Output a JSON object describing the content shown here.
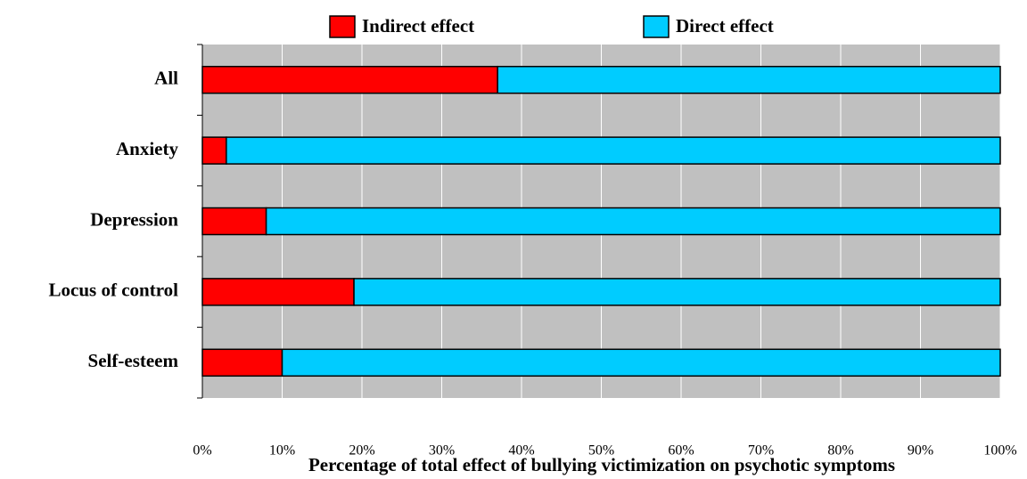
{
  "chart_data": {
    "type": "stacked_barh",
    "xlabel": "Percentage of total effect of bullying victimization on psychotic symptoms",
    "categories": [
      "All",
      "Anxiety",
      "Depression",
      "Locus of control",
      "Self-esteem"
    ],
    "series": [
      {
        "name": "Indirect effect",
        "color": "#ff0000",
        "values": [
          37,
          3,
          8,
          19,
          10
        ]
      },
      {
        "name": "Direct effect",
        "color": "#00ccff",
        "values": [
          63,
          97,
          92,
          81,
          90
        ]
      }
    ],
    "xlim": [
      0,
      100
    ],
    "xticks": [
      {
        "value": 0,
        "label": "0%"
      },
      {
        "value": 10,
        "label": "10%"
      },
      {
        "value": 20,
        "label": "20%"
      },
      {
        "value": 30,
        "label": "30%"
      },
      {
        "value": 40,
        "label": "40%"
      },
      {
        "value": 50,
        "label": "50%"
      },
      {
        "value": 60,
        "label": "60%"
      },
      {
        "value": 70,
        "label": "70%"
      },
      {
        "value": 80,
        "label": "80%"
      },
      {
        "value": 90,
        "label": "90%"
      },
      {
        "value": 100,
        "label": "100%"
      }
    ],
    "grid": true
  }
}
